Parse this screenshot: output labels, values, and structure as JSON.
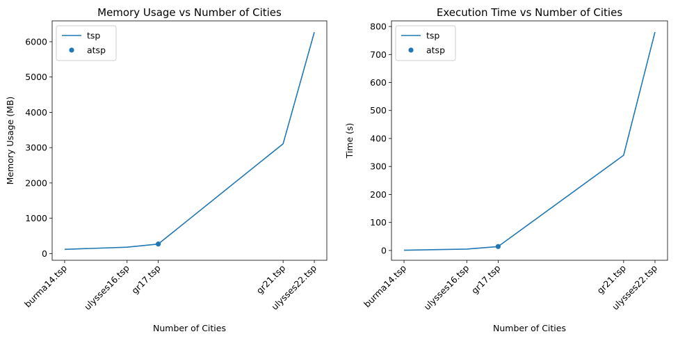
{
  "colors": {
    "series": "#1f77b4",
    "axis": "#000000",
    "background": "#ffffff",
    "legend_border": "#cccccc"
  },
  "chart_data": [
    {
      "type": "line",
      "title": "Memory Usage vs Number of Cities",
      "xlabel": "Number of Cities",
      "ylabel": "Memory Usage (MB)",
      "x": [
        14,
        16,
        17,
        21,
        22
      ],
      "x_tick_labels": [
        "burma14.tsp",
        "ulysses16.tsp",
        "gr17.tsp",
        "gr21.tsp",
        "ulysses22.tsp"
      ],
      "xlim": [
        13.6,
        22.4
      ],
      "ylim": [
        -190,
        6590
      ],
      "yticks": [
        0,
        1000,
        2000,
        3000,
        4000,
        5000,
        6000
      ],
      "series": [
        {
          "name": "tsp",
          "kind": "line",
          "x": [
            14,
            16,
            17,
            21,
            22
          ],
          "y": [
            120,
            180,
            270,
            3110,
            6270
          ]
        },
        {
          "name": "atsp",
          "kind": "scatter",
          "x": [
            17
          ],
          "y": [
            270
          ]
        }
      ],
      "legend": "top-left",
      "grid": false
    },
    {
      "type": "line",
      "title": "Execution Time vs Number of Cities",
      "xlabel": "Number of Cities",
      "ylabel": "Time (s)",
      "x": [
        14,
        16,
        17,
        21,
        22
      ],
      "x_tick_labels": [
        "burma14.tsp",
        "ulysses16.tsp",
        "gr17.tsp",
        "gr21.tsp",
        "ulysses22.tsp"
      ],
      "xlim": [
        13.6,
        22.4
      ],
      "ylim": [
        -35,
        820
      ],
      "yticks": [
        0,
        100,
        200,
        300,
        400,
        500,
        600,
        700,
        800
      ],
      "series": [
        {
          "name": "tsp",
          "kind": "line",
          "x": [
            14,
            16,
            17,
            21,
            22
          ],
          "y": [
            1,
            5,
            14,
            340,
            780
          ]
        },
        {
          "name": "atsp",
          "kind": "scatter",
          "x": [
            17
          ],
          "y": [
            14
          ]
        }
      ],
      "legend": "top-left",
      "grid": false
    }
  ]
}
